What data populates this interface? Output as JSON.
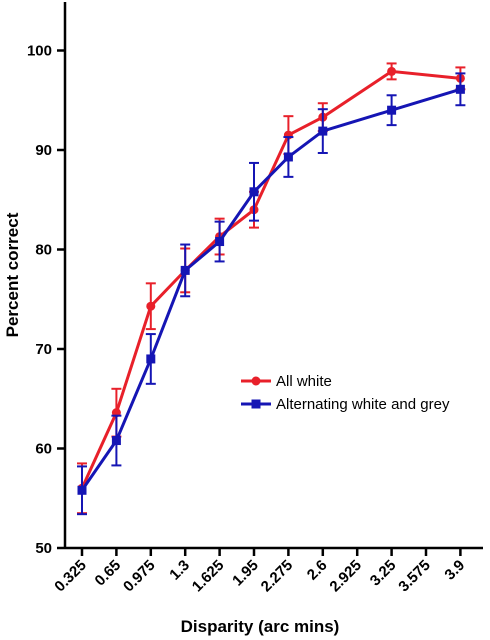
{
  "chart_data": {
    "type": "line",
    "xlabel": "Disparity (arc mins)",
    "ylabel": "Percent correct",
    "ylim": [
      50,
      105
    ],
    "yticks": [
      50,
      60,
      70,
      80,
      90,
      100
    ],
    "x_tick_labels": [
      "0.325",
      "0.65",
      "0.975",
      "1.3",
      "1.625",
      "1.95",
      "2.275",
      "2.6",
      "2.925",
      "3.25",
      "3.575",
      "3.9"
    ],
    "legend_position": "center-right",
    "series": [
      {
        "name": "All white",
        "color": "#e8202a",
        "marker": "circle",
        "points": [
          {
            "x": "0.325",
            "y": 56.0,
            "err": 2.5
          },
          {
            "x": "0.65",
            "y": 63.6,
            "err": 2.4
          },
          {
            "x": "0.975",
            "y": 74.3,
            "err": 2.3
          },
          {
            "x": "1.3",
            "y": 77.9,
            "err": 2.2
          },
          {
            "x": "1.625",
            "y": 81.3,
            "err": 1.8
          },
          {
            "x": "1.95",
            "y": 84.0,
            "err": 1.8
          },
          {
            "x": "2.275",
            "y": 91.5,
            "err": 1.9
          },
          {
            "x": "2.6",
            "y": 93.3,
            "err": 1.4
          },
          {
            "x": "3.25",
            "y": 97.9,
            "err": 0.8
          },
          {
            "x": "3.9",
            "y": 97.2,
            "err": 1.1
          }
        ]
      },
      {
        "name": "Alternating white and grey",
        "color": "#1515b4",
        "marker": "square",
        "points": [
          {
            "x": "0.325",
            "y": 55.8,
            "err": 2.4
          },
          {
            "x": "0.65",
            "y": 60.8,
            "err": 2.5
          },
          {
            "x": "0.975",
            "y": 69.0,
            "err": 2.5
          },
          {
            "x": "1.3",
            "y": 77.9,
            "err": 2.6
          },
          {
            "x": "1.625",
            "y": 80.8,
            "err": 2.0
          },
          {
            "x": "1.95",
            "y": 85.8,
            "err": 2.9
          },
          {
            "x": "2.275",
            "y": 89.3,
            "err": 2.0
          },
          {
            "x": "2.6",
            "y": 91.9,
            "err": 2.2
          },
          {
            "x": "3.25",
            "y": 94.0,
            "err": 1.5
          },
          {
            "x": "3.9",
            "y": 96.1,
            "err": 1.6
          }
        ]
      }
    ]
  }
}
